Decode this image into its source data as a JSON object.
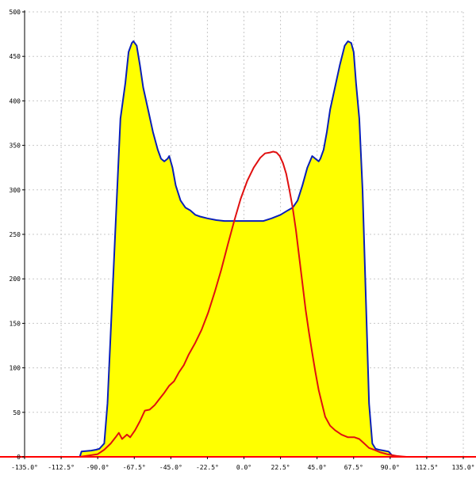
{
  "chart_data": {
    "type": "area",
    "title": "",
    "xlabel": "",
    "ylabel": "",
    "xlim": [
      -135,
      135
    ],
    "ylim": [
      0,
      500
    ],
    "grid": true,
    "x_ticks": [
      -135,
      -112.5,
      -90,
      -67.5,
      -45,
      -22.5,
      0,
      22.5,
      45,
      67.5,
      90,
      112.5,
      135
    ],
    "x_tick_labels": [
      "-135.0°",
      "-112.5°",
      "-90.0°",
      "-67.5°",
      "-45.0°",
      "-22.5°",
      "0.0°",
      "22.5°",
      "45.0°",
      "67.5°",
      "90.0°",
      "112.5°",
      "135.0°"
    ],
    "y_ticks": [
      0,
      50,
      100,
      150,
      200,
      250,
      300,
      350,
      400,
      450,
      500
    ],
    "y_tick_labels": [
      "0",
      "50",
      "100",
      "150",
      "200",
      "250",
      "300",
      "350",
      "400",
      "450",
      "500"
    ],
    "colors": {
      "fill": "#ffff00",
      "blue_line": "#0a1fb8",
      "red_line": "#e01010",
      "axis_red": "#ff0000",
      "grid": "#c8c8c8"
    },
    "series": [
      {
        "color": "#0a1fb8",
        "filled": true,
        "x": [
          -101,
          -100,
          -94,
          -91,
          -89,
          -86,
          -84,
          -81,
          -78,
          -76,
          -73,
          -71,
          -69,
          -68,
          -66,
          -64,
          -62,
          -59,
          -56,
          -53,
          -51,
          -49,
          -47,
          -46,
          -44,
          -42,
          -39,
          -36,
          -33,
          -30,
          -27,
          -22.5,
          -17,
          -12,
          -7,
          -3,
          0,
          3,
          7,
          12,
          17,
          22.5,
          27,
          30,
          33,
          36,
          39,
          42,
          44,
          46,
          47,
          49,
          51,
          53,
          56,
          59,
          62,
          64,
          66,
          67.5,
          69,
          71,
          73,
          75,
          77,
          79,
          81,
          83,
          86,
          89,
          92,
          97,
          101,
          102
        ],
        "values": [
          0,
          6,
          7,
          8,
          9,
          15,
          60,
          180,
          300,
          380,
          420,
          455,
          465,
          467,
          462,
          440,
          415,
          390,
          365,
          345,
          335,
          332,
          335,
          338,
          325,
          305,
          288,
          280,
          277,
          272,
          270,
          268,
          266,
          265,
          265,
          265,
          265,
          265,
          265,
          265,
          268,
          272,
          277,
          280,
          288,
          305,
          325,
          338,
          335,
          332,
          335,
          345,
          365,
          390,
          415,
          440,
          462,
          467,
          465,
          455,
          420,
          380,
          300,
          180,
          60,
          15,
          9,
          8,
          7,
          6,
          0,
          0,
          0,
          0
        ]
      },
      {
        "color": "#e01010",
        "filled": false,
        "x": [
          -101,
          -90,
          -86,
          -82,
          -79,
          -77,
          -75,
          -72,
          -70,
          -67,
          -64,
          -61,
          -58,
          -55,
          -52,
          -49,
          -46,
          -43,
          -40,
          -37,
          -34,
          -30,
          -26,
          -22,
          -18,
          -14,
          -10,
          -6,
          -2,
          2,
          6,
          10,
          13,
          16,
          18,
          20,
          22,
          24,
          26,
          28,
          30,
          32,
          34,
          36,
          38,
          40,
          42,
          44,
          46,
          48,
          50,
          53,
          56,
          60,
          64,
          68,
          71,
          74,
          77,
          80,
          84,
          88,
          94,
          100,
          102
        ],
        "values": [
          0,
          3,
          8,
          15,
          22,
          27,
          20,
          25,
          22,
          30,
          40,
          52,
          53,
          58,
          65,
          72,
          80,
          85,
          95,
          103,
          115,
          128,
          143,
          162,
          185,
          210,
          238,
          265,
          290,
          310,
          325,
          336,
          341,
          342,
          343,
          342,
          338,
          330,
          318,
          300,
          280,
          255,
          225,
          195,
          165,
          140,
          117,
          95,
          75,
          60,
          45,
          35,
          30,
          25,
          22,
          22,
          20,
          15,
          10,
          8,
          5,
          3,
          1,
          0,
          0
        ]
      }
    ]
  }
}
